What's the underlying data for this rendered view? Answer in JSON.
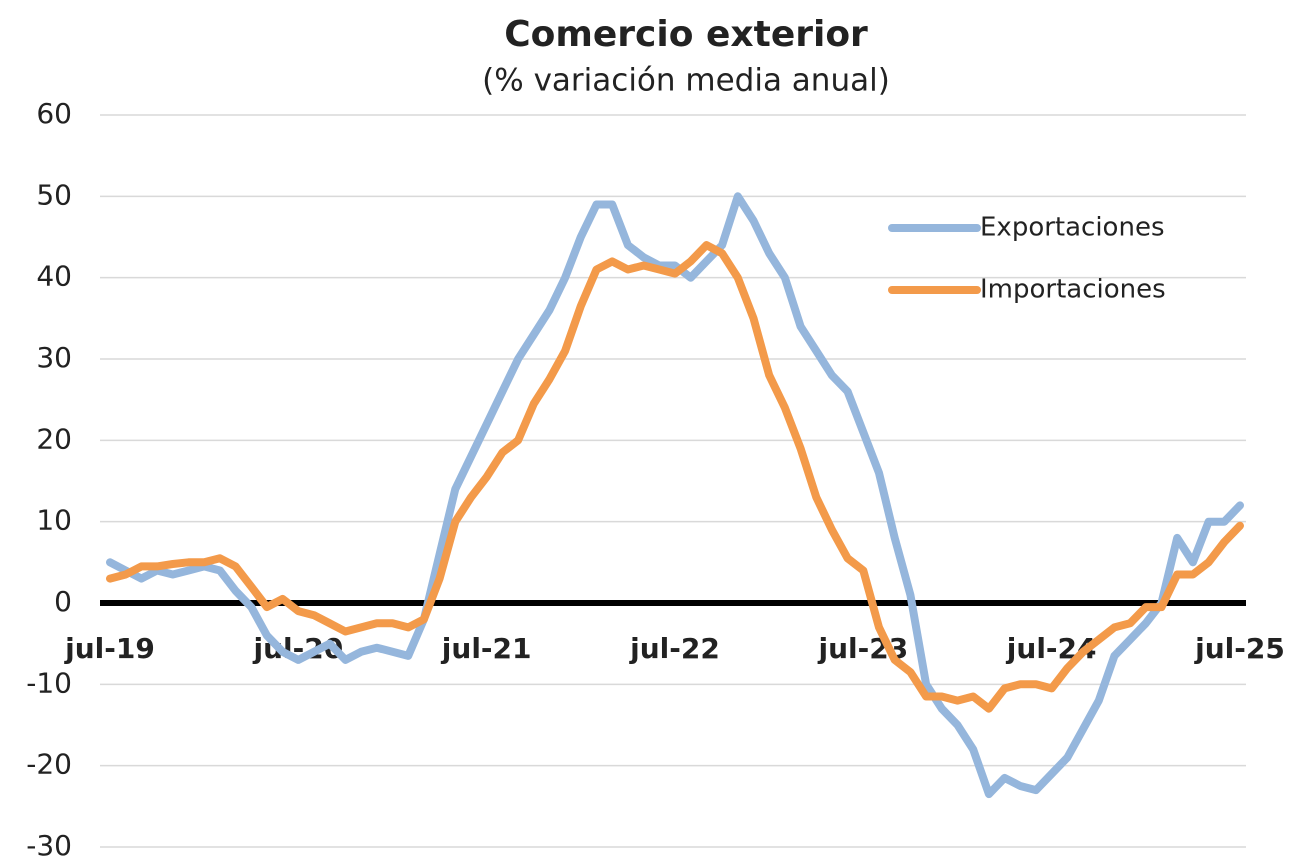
{
  "chart_data": {
    "type": "line",
    "title": "Comercio exterior",
    "subtitle": "(% variación media anual)",
    "categories": [
      "jul-19",
      null,
      null,
      null,
      null,
      null,
      null,
      null,
      null,
      null,
      null,
      null,
      "jul-20",
      null,
      null,
      null,
      null,
      null,
      null,
      null,
      null,
      null,
      null,
      null,
      "jul-21",
      null,
      null,
      null,
      null,
      null,
      null,
      null,
      null,
      null,
      null,
      null,
      "jul-22",
      null,
      null,
      null,
      null,
      null,
      null,
      null,
      null,
      null,
      null,
      null,
      "jul-23",
      null,
      null,
      null,
      null,
      null,
      null,
      null,
      null,
      null,
      null,
      null,
      "jul-24",
      null,
      null,
      null,
      null,
      null,
      null,
      null,
      null,
      null,
      null,
      null,
      "jul-25"
    ],
    "series": [
      {
        "name": "Exportaciones",
        "color": "#95b6dc",
        "values": [
          5,
          4,
          3,
          4,
          3.5,
          4,
          4.5,
          4,
          1.5,
          -0.5,
          -4,
          -6,
          -7,
          -6,
          -5,
          -7,
          -6,
          -5.5,
          -6,
          -6.5,
          -2,
          6,
          14,
          18,
          22,
          26,
          30,
          33,
          36,
          40,
          45,
          49,
          49,
          44,
          42.5,
          41.5,
          41.5,
          40,
          42,
          44,
          50,
          47,
          43,
          40,
          34,
          31,
          28,
          26,
          21,
          16,
          8,
          1,
          -10,
          -13,
          -15,
          -18,
          -23.5,
          -21.5,
          -22.5,
          -23,
          -21,
          -19,
          -15.5,
          -12,
          -6.5,
          -4.5,
          -2.5,
          0,
          8,
          5,
          10,
          10,
          12
        ]
      },
      {
        "name": "Importaciones",
        "color": "#f39a4a",
        "values": [
          3,
          3.5,
          4.5,
          4.5,
          4.8,
          5,
          5,
          5.5,
          4.5,
          2,
          -0.5,
          0.5,
          -1,
          -1.5,
          -2.5,
          -3.5,
          -3,
          -2.5,
          -2.5,
          -3,
          -2,
          3,
          10,
          13,
          15.5,
          18.5,
          20,
          24.5,
          27.5,
          31,
          36.5,
          41,
          42,
          41,
          41.5,
          41,
          40.5,
          42,
          44,
          43,
          40,
          35,
          28,
          24,
          19,
          13,
          9,
          5.5,
          4,
          -3,
          -7,
          -8.5,
          -11.5,
          -11.5,
          -12,
          -11.5,
          -13,
          -10.5,
          -10,
          -10,
          -10.5,
          -8,
          -6,
          -4.5,
          -3,
          -2.5,
          -0.5,
          -0.5,
          3.5,
          3.5,
          5,
          7.5,
          9.5
        ]
      }
    ],
    "ylim": [
      -30,
      60
    ],
    "yticks": [
      -30,
      -20,
      -10,
      0,
      10,
      20,
      30,
      40,
      50,
      60
    ],
    "grid": true,
    "legend": "upper right"
  }
}
